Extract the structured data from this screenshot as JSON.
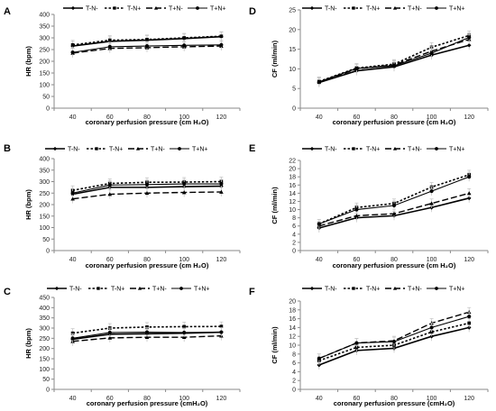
{
  "figure": {
    "legend_entries": [
      "T-N-",
      "T-N+",
      "T+N-",
      "T+N+"
    ]
  },
  "chart_data": [
    {
      "panel": "A",
      "type": "line",
      "x": [
        40,
        60,
        80,
        100,
        120
      ],
      "xlabel": "coronary perfusion pressure (cm H₂O)",
      "ylabel": "HR (bpm)",
      "ylim": [
        0,
        400
      ],
      "yticks": [
        0,
        50,
        100,
        150,
        200,
        250,
        300,
        350,
        400
      ],
      "grid": false,
      "legend": "top",
      "series": [
        {
          "name": "T-N-",
          "values": [
            265,
            285,
            290,
            297,
            305
          ]
        },
        {
          "name": "T-N+",
          "values": [
            270,
            290,
            293,
            300,
            307
          ]
        },
        {
          "name": "T+N-",
          "values": [
            235,
            255,
            258,
            262,
            265
          ]
        },
        {
          "name": "T+N+",
          "values": [
            238,
            262,
            265,
            268,
            270
          ]
        }
      ]
    },
    {
      "panel": "B",
      "type": "line",
      "x": [
        40,
        60,
        80,
        100,
        120
      ],
      "xlabel": "coronary perfusion pressure (cm H₂O)",
      "ylabel": "HR (bpm)",
      "ylim": [
        0,
        400
      ],
      "yticks": [
        0,
        50,
        100,
        150,
        200,
        250,
        300,
        350,
        400
      ],
      "grid": false,
      "legend": "top",
      "series": [
        {
          "name": "T-N-",
          "values": [
            245,
            275,
            275,
            278,
            280
          ]
        },
        {
          "name": "T-N+",
          "values": [
            262,
            292,
            297,
            298,
            300
          ]
        },
        {
          "name": "T+N-",
          "values": [
            225,
            245,
            250,
            253,
            255
          ]
        },
        {
          "name": "T+N+",
          "values": [
            250,
            285,
            287,
            290,
            290
          ]
        }
      ]
    },
    {
      "panel": "C",
      "type": "line",
      "x": [
        40,
        60,
        80,
        100,
        120
      ],
      "xlabel": "coronary perfusion pressure (cmH₂O)",
      "ylabel": "HR (bpm)",
      "ylim": [
        0,
        450
      ],
      "yticks": [
        0,
        50,
        100,
        150,
        200,
        250,
        300,
        350,
        400,
        450
      ],
      "grid": false,
      "legend": "top",
      "series": [
        {
          "name": "T-N-",
          "values": [
            245,
            270,
            272,
            275,
            280
          ]
        },
        {
          "name": "T-N+",
          "values": [
            275,
            300,
            305,
            307,
            308
          ]
        },
        {
          "name": "T+N-",
          "values": [
            235,
            252,
            255,
            255,
            262
          ]
        },
        {
          "name": "T+N+",
          "values": [
            250,
            278,
            280,
            278,
            280
          ]
        }
      ]
    },
    {
      "panel": "D",
      "type": "line",
      "x": [
        40,
        60,
        80,
        100,
        120
      ],
      "xlabel": "coronary perfusion pressure (cm H₂O)",
      "ylabel": "CF (ml/min)",
      "ylim": [
        0,
        25
      ],
      "yticks": [
        0,
        5,
        10,
        15,
        20,
        25
      ],
      "grid": false,
      "legend": "top",
      "series": [
        {
          "name": "T-N-",
          "values": [
            6.5,
            9.5,
            10.5,
            13.5,
            16
          ]
        },
        {
          "name": "T-N+",
          "values": [
            6.8,
            10.2,
            11.2,
            15.5,
            18.5
          ]
        },
        {
          "name": "T+N-",
          "values": [
            6.6,
            10,
            11,
            14.5,
            17.5
          ]
        },
        {
          "name": "T+N+",
          "values": [
            6.7,
            10.1,
            10.8,
            14,
            18
          ]
        }
      ]
    },
    {
      "panel": "E",
      "type": "line",
      "x": [
        40,
        60,
        80,
        100,
        120
      ],
      "xlabel": "coronary perfusion pressure (cm H₂O)",
      "ylabel": "CF (ml/min)",
      "ylim": [
        0,
        22
      ],
      "yticks": [
        0,
        2,
        4,
        6,
        8,
        10,
        12,
        14,
        16,
        18,
        20,
        22
      ],
      "grid": false,
      "legend": "top",
      "series": [
        {
          "name": "T-N-",
          "values": [
            5.5,
            8,
            8.5,
            10.5,
            12.8
          ]
        },
        {
          "name": "T-N+",
          "values": [
            6.5,
            10.5,
            11.5,
            15.5,
            18.5
          ]
        },
        {
          "name": "T+N-",
          "values": [
            6,
            8.5,
            9,
            11.5,
            14
          ]
        },
        {
          "name": "T+N+",
          "values": [
            6.5,
            10,
            11,
            14.5,
            18
          ]
        }
      ]
    },
    {
      "panel": "F",
      "type": "line",
      "x": [
        40,
        60,
        80,
        100,
        120
      ],
      "xlabel": "coronary perfusion pressure (cmH₂O)",
      "ylabel": "CF (ml/min)",
      "ylim": [
        0,
        20
      ],
      "yticks": [
        0,
        2,
        4,
        6,
        8,
        10,
        12,
        14,
        16,
        18,
        20
      ],
      "grid": false,
      "legend": "top",
      "series": [
        {
          "name": "T-N-",
          "values": [
            5.5,
            8.8,
            9.3,
            12,
            14
          ]
        },
        {
          "name": "T-N+",
          "values": [
            6.5,
            9.5,
            10,
            13,
            15
          ]
        },
        {
          "name": "T+N-",
          "values": [
            7,
            10.5,
            11,
            15,
            17.5
          ]
        },
        {
          "name": "T+N+",
          "values": [
            7,
            10.5,
            10.8,
            14,
            16.5
          ]
        }
      ]
    }
  ]
}
